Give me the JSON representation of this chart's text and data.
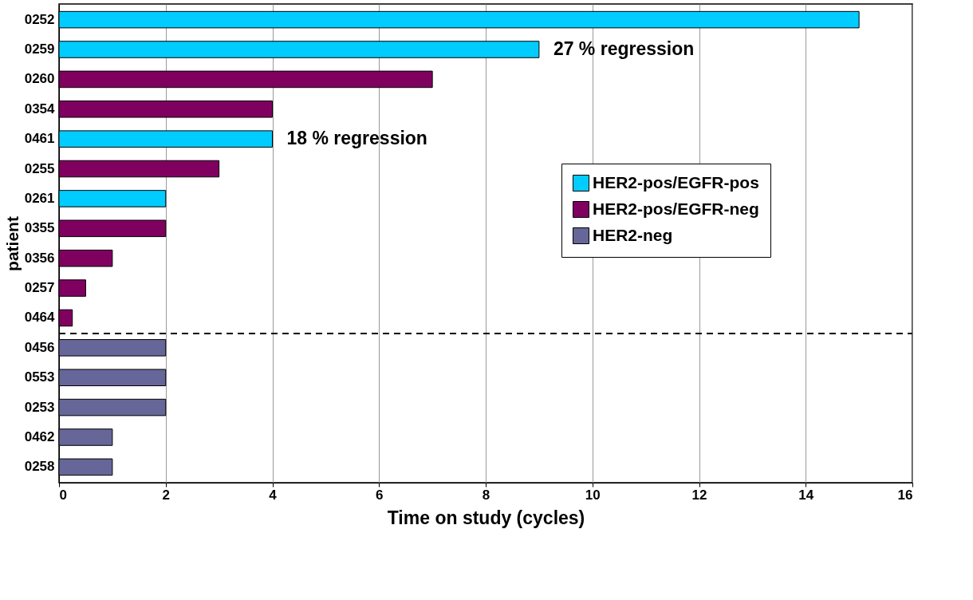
{
  "chart_data": {
    "type": "bar",
    "orientation": "horizontal",
    "xlabel": "Time on study (cycles)",
    "ylabel": "patient",
    "categories": [
      "0252",
      "0259",
      "0260",
      "0354",
      "0461",
      "0255",
      "0261",
      "0355",
      "0356",
      "0257",
      "0464",
      "0456",
      "0553",
      "0253",
      "0462",
      "0258"
    ],
    "series": [
      {
        "name": "HER2-pos/EGFR-pos",
        "color": "#00ccff",
        "values": [
          15,
          9,
          null,
          null,
          4,
          null,
          2,
          null,
          null,
          null,
          null,
          null,
          null,
          null,
          null,
          null
        ]
      },
      {
        "name": "HER2-pos/EGFR-neg",
        "color": "#800060",
        "values": [
          null,
          null,
          7,
          4,
          null,
          3,
          null,
          2,
          1,
          0.5,
          0.25,
          null,
          null,
          null,
          null,
          null
        ]
      },
      {
        "name": "HER2-neg",
        "color": "#666699",
        "values": [
          null,
          null,
          null,
          null,
          null,
          null,
          null,
          null,
          null,
          null,
          null,
          2,
          2,
          2,
          1,
          1
        ]
      }
    ],
    "xlim": [
      0,
      16
    ],
    "xticks": [
      0,
      2,
      4,
      6,
      8,
      10,
      12,
      14,
      16
    ],
    "grid": "x",
    "legend": "right",
    "ref_lines": [
      {
        "axis": "y",
        "value": "0464",
        "line_style": "dashed",
        "color": "#000000"
      }
    ],
    "annotations": [
      {
        "text": "27 % regression",
        "x": 9,
        "y": "0259"
      },
      {
        "text": "18 % regression",
        "x": 4,
        "y": "0461"
      }
    ]
  }
}
